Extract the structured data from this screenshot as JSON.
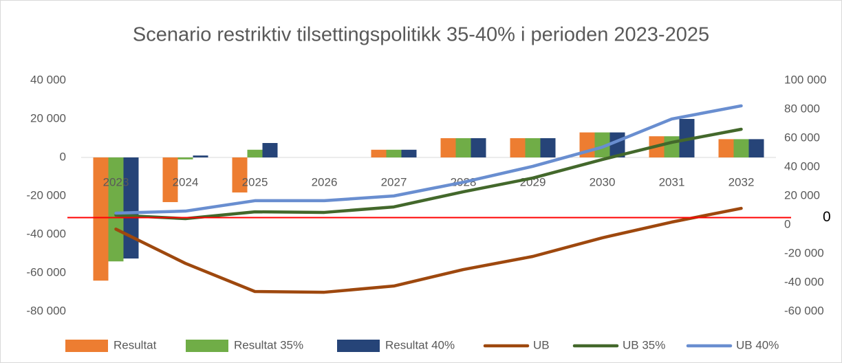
{
  "chart_data": {
    "type": "bar_line",
    "title": "Scenario restriktiv tilsettingspolitikk 35-40% i perioden  2023-2025",
    "categories": [
      "2023",
      "2024",
      "2025",
      "2026",
      "2027",
      "2028",
      "2029",
      "2030",
      "2031",
      "2032"
    ],
    "series": [
      {
        "name": "Resultat",
        "type": "bar",
        "color": "#ED7D31",
        "values": [
          -64000,
          -23200,
          -18200,
          0,
          4000,
          10000,
          10000,
          13000,
          11000,
          9500
        ]
      },
      {
        "name": "Resultat 35%",
        "type": "bar",
        "color": "#70AD47",
        "values": [
          -54000,
          -1000,
          4000,
          0,
          4000,
          10000,
          10000,
          13000,
          11000,
          9500
        ]
      },
      {
        "name": "Resultat 40%",
        "type": "bar",
        "color": "#264478",
        "values": [
          -52500,
          1000,
          7500,
          0,
          4000,
          10000,
          10000,
          13000,
          20000,
          9500
        ]
      },
      {
        "name": "UB",
        "type": "line",
        "axis": "y2",
        "color": "#9E480E",
        "values": [
          -3000,
          -26700,
          -46200,
          -46700,
          -42400,
          -31000,
          -21900,
          -9000,
          1900,
          11400
        ]
      },
      {
        "name": "UB 35%",
        "type": "line",
        "axis": "y2",
        "color": "#43682B",
        "values": [
          6700,
          4300,
          9000,
          8600,
          12400,
          22900,
          32400,
          45200,
          57100,
          66200
        ]
      },
      {
        "name": "UB 40%",
        "type": "line",
        "axis": "y2",
        "color": "#698ED0",
        "values": [
          8100,
          9500,
          16700,
          16700,
          20000,
          29500,
          40500,
          53800,
          73300,
          82400
        ]
      }
    ],
    "ylim": [
      -80000,
      40000
    ],
    "yticks": [
      {
        "value": -80000,
        "label": "-80 000"
      },
      {
        "value": -60000,
        "label": "-60 000"
      },
      {
        "value": -40000,
        "label": "-40 000"
      },
      {
        "value": -20000,
        "label": "-20 000"
      },
      0,
      {
        "value": 20000,
        "label": "20 000"
      },
      {
        "value": 40000,
        "label": "40 000"
      }
    ],
    "y2lim": [
      -60000,
      100000
    ],
    "y2ticks": [
      {
        "value": -60000,
        "label": "-60 000"
      },
      {
        "value": -40000,
        "label": "-40 000"
      },
      {
        "value": -20000,
        "label": "-20 000"
      },
      0,
      {
        "value": 20000,
        "label": "20 000"
      },
      {
        "value": 40000,
        "label": "40 000"
      },
      {
        "value": 60000,
        "label": "60 000"
      },
      {
        "value": 80000,
        "label": "80 000"
      },
      {
        "value": 100000,
        "label": "100 000"
      }
    ],
    "reference_line": {
      "value": 5000,
      "axis": "y2",
      "label": "0",
      "color": "#FF0000"
    },
    "grid": false,
    "legend": "bottom"
  }
}
